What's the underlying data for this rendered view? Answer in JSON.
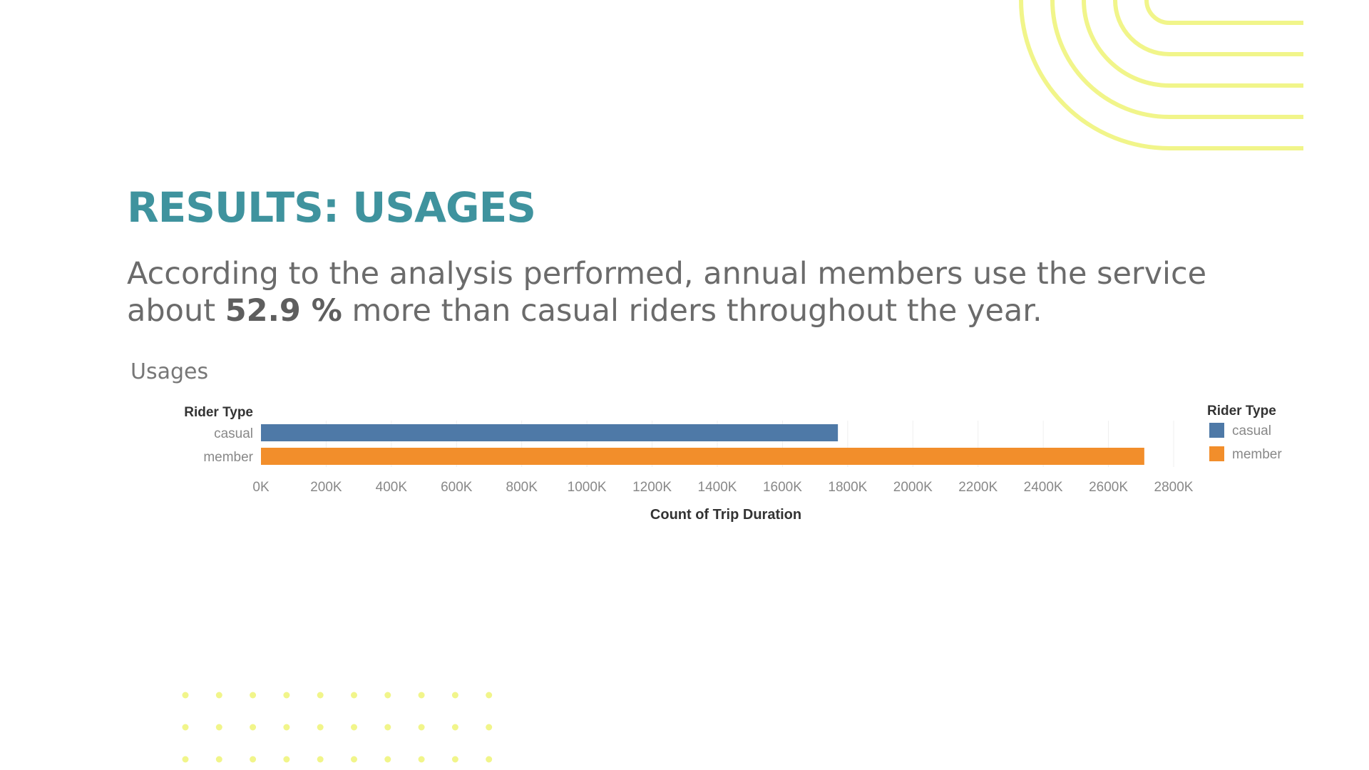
{
  "slide": {
    "title": "RESULTS: USAGES",
    "body_prefix": "According to the analysis performed, annual members use the service about ",
    "body_highlight": "52.9 %",
    "body_suffix": " more than casual riders throughout the year."
  },
  "colors": {
    "title": "#3f939e",
    "body_text": "#6b6b6b",
    "decoration": "#f1f58a",
    "casual": "#4e79a7",
    "member": "#f28e2b"
  },
  "decorations": {
    "top_right": "concentric-arcs",
    "bottom_left": "dot-grid"
  },
  "chart_data": {
    "type": "bar",
    "orientation": "horizontal",
    "title": "Usages",
    "row_header": "Rider Type",
    "categories": [
      "casual",
      "member"
    ],
    "values": [
      1770000,
      2710000
    ],
    "x_ticks": [
      0,
      200000,
      400000,
      600000,
      800000,
      1000000,
      1200000,
      1400000,
      1600000,
      1800000,
      2000000,
      2200000,
      2400000,
      2600000,
      2800000
    ],
    "x_tick_labels": [
      "0K",
      "200K",
      "400K",
      "600K",
      "800K",
      "1000K",
      "1200K",
      "1400K",
      "1600K",
      "1800K",
      "2000K",
      "2200K",
      "2400K",
      "2600K",
      "2800K"
    ],
    "xlabel": "Count of Trip Duration",
    "xlim": [
      0,
      2800000
    ],
    "grid": true,
    "legend": {
      "title": "Rider Type",
      "placement": "right",
      "entries": [
        {
          "label": "casual",
          "color": "#4e79a7"
        },
        {
          "label": "member",
          "color": "#f28e2b"
        }
      ]
    }
  }
}
